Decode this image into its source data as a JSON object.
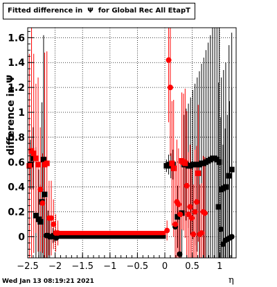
{
  "title_text": "Fitted difference in  Ψ  for Global Rec All EtapT",
  "footer_text": "Wed Jan 13 08:19:21 2021",
  "chart_data": {
    "type": "scatter",
    "title": "Fitted difference in  Ψ  for Global Rec All EtapT",
    "xlabel": "η",
    "ylabel": "difference in Ψ",
    "xlim": [
      -2.5,
      1.3
    ],
    "ylim": [
      -0.17,
      1.68
    ],
    "x_ticks": [
      -2.5,
      -2,
      -1.5,
      -1,
      -0.5,
      0,
      0.5,
      1
    ],
    "x_tick_labels": [
      "−2.5",
      "−2",
      "−1.5",
      "−1",
      "−0.5",
      "0",
      "0.5",
      "1"
    ],
    "y_ticks": [
      0,
      0.2,
      0.4,
      0.6,
      0.8,
      1,
      1.2,
      1.4,
      1.6
    ],
    "y_tick_labels": [
      "0",
      "0.2",
      "0.4",
      "0.6",
      "0.8",
      "1",
      "1.2",
      "1.4",
      "1.6"
    ],
    "grid": true,
    "series": [
      {
        "color": "#000000",
        "points": [
          [
            -2.45,
            0.58,
            0.2
          ],
          [
            -2.4,
            0.63,
            0.25
          ],
          [
            -2.35,
            0.17,
            0.55
          ],
          [
            -2.3,
            0.14,
            0.4
          ],
          [
            -2.27,
            0.12,
            0.3
          ],
          [
            -2.24,
            0.28,
            0.8
          ],
          [
            -2.21,
            0.62,
            1.0
          ],
          [
            -2.19,
            0.34,
            0.6
          ],
          [
            -2.16,
            0.01,
            0.3
          ],
          [
            -2.13,
            0.01,
            0.2
          ],
          [
            -2.1,
            0.0,
            0.15
          ],
          [
            -2.07,
            0.0,
            0.1
          ],
          [
            -2.04,
            0.01,
            0.06
          ],
          [
            -2.01,
            0.0,
            0.04
          ],
          [
            -1.98,
            -0.01,
            0.02
          ],
          [
            0.03,
            0.57,
            0.05
          ],
          [
            0.07,
            0.58,
            0.08
          ],
          [
            0.11,
            0.57,
            0.1
          ],
          [
            0.15,
            0.58,
            0.12
          ],
          [
            0.19,
            0.08,
            0.2
          ],
          [
            0.23,
            0.16,
            0.25
          ],
          [
            0.27,
            -0.14,
            0.3
          ],
          [
            0.31,
            0.19,
            0.35
          ],
          [
            0.35,
            0.58,
            0.4
          ],
          [
            0.39,
            0.58,
            0.45
          ],
          [
            0.43,
            0.57,
            0.5
          ],
          [
            0.47,
            0.57,
            0.55
          ],
          [
            0.51,
            0.58,
            0.6
          ],
          [
            0.55,
            0.58,
            0.65
          ],
          [
            0.59,
            0.58,
            0.7
          ],
          [
            0.63,
            0.58,
            0.75
          ],
          [
            0.67,
            0.59,
            0.8
          ],
          [
            0.71,
            0.59,
            0.85
          ],
          [
            0.75,
            0.6,
            0.9
          ],
          [
            0.79,
            0.61,
            0.95
          ],
          [
            0.83,
            0.62,
            1.0
          ],
          [
            0.87,
            0.63,
            1.05
          ],
          [
            0.91,
            0.63,
            1.1
          ],
          [
            0.95,
            0.62,
            1.15
          ],
          [
            0.99,
            0.6,
            1.2
          ],
          [
            0.98,
            0.24,
            1.0
          ],
          [
            1.02,
            0.06,
            0.9
          ],
          [
            1.06,
            -0.06,
            0.8
          ],
          [
            1.1,
            -0.03,
            0.9
          ],
          [
            1.14,
            -0.02,
            1.0
          ],
          [
            1.18,
            -0.01,
            1.1
          ],
          [
            1.22,
            0.0,
            1.2
          ],
          [
            1.03,
            0.38,
            0.9
          ],
          [
            1.07,
            0.39,
            0.95
          ],
          [
            1.11,
            0.4,
            1.0
          ],
          [
            1.17,
            0.49,
            1.05
          ],
          [
            1.22,
            0.54,
            1.1
          ]
        ]
      },
      {
        "color": "#ff0000",
        "points": [
          [
            -2.47,
            0.57,
            0.9
          ],
          [
            -2.43,
            0.69,
            1.0
          ],
          [
            -2.39,
            0.67,
            0.8
          ],
          [
            -2.35,
            0.63,
            0.6
          ],
          [
            -2.31,
            0.58,
            0.7
          ],
          [
            -2.27,
            0.38,
            0.5
          ],
          [
            -2.23,
            0.27,
            0.4
          ],
          [
            -2.19,
            0.58,
            0.9
          ],
          [
            -2.15,
            0.59,
            0.9
          ],
          [
            -2.11,
            0.15,
            0.3
          ],
          [
            -2.07,
            0.15,
            0.3
          ],
          [
            -2.03,
            0.1,
            0.2
          ],
          [
            -1.99,
            0.03,
            0.15
          ],
          [
            -1.95,
            0.03,
            0.1
          ],
          [
            0.04,
            0.05,
            0.08
          ],
          [
            0.07,
            1.42,
            0.5
          ],
          [
            0.1,
            1.2,
            0.55
          ],
          [
            0.13,
            0.59,
            0.5
          ],
          [
            0.16,
            0.55,
            0.55
          ],
          [
            0.19,
            0.1,
            0.5
          ],
          [
            0.22,
            0.28,
            0.5
          ],
          [
            0.25,
            0.26,
            0.45
          ],
          [
            0.28,
            0.18,
            0.45
          ],
          [
            0.31,
            0.61,
            0.55
          ],
          [
            0.34,
            0.6,
            0.55
          ],
          [
            0.37,
            0.59,
            0.6
          ],
          [
            0.4,
            0.41,
            0.6
          ],
          [
            0.43,
            0.18,
            0.5
          ],
          [
            0.46,
            0.24,
            0.5
          ],
          [
            0.49,
            0.15,
            0.45
          ],
          [
            0.52,
            0.02,
            0.4
          ],
          [
            0.55,
            0.2,
            0.5
          ],
          [
            0.58,
            0.28,
            0.45
          ],
          [
            0.61,
            0.51,
            0.55
          ],
          [
            0.64,
            0.02,
            0.4
          ],
          [
            0.67,
            0.03,
            0.4
          ],
          [
            0.7,
            0.2,
            0.45
          ],
          [
            0.73,
            0.19,
            0.45
          ]
        ]
      }
    ]
  }
}
